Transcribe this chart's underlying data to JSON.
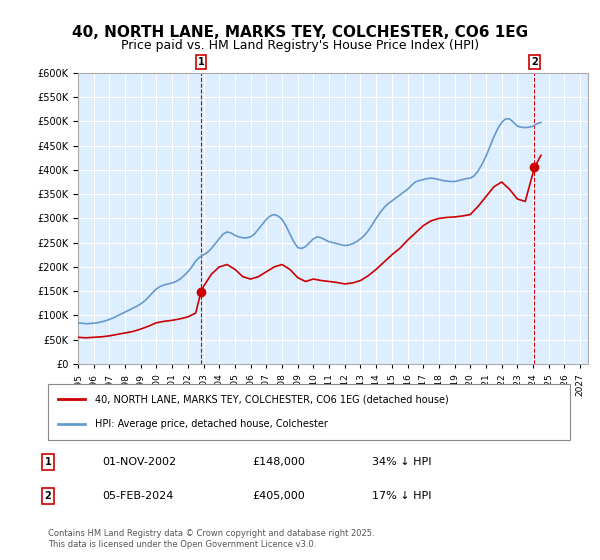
{
  "title": "40, NORTH LANE, MARKS TEY, COLCHESTER, CO6 1EG",
  "subtitle": "Price paid vs. HM Land Registry's House Price Index (HPI)",
  "title_fontsize": 11,
  "subtitle_fontsize": 9,
  "background_color": "#ffffff",
  "plot_bg_color": "#ddeeff",
  "grid_color": "#ffffff",
  "ylim": [
    0,
    600000
  ],
  "yticks": [
    0,
    50000,
    100000,
    150000,
    200000,
    250000,
    300000,
    350000,
    400000,
    450000,
    500000,
    550000,
    600000
  ],
  "ylabel_format": "£{0}K",
  "xlim_start": 1995.0,
  "xlim_end": 2027.5,
  "red_line_color": "#cc0000",
  "blue_line_color": "#6699cc",
  "marker_color_red": "#cc0000",
  "sale1_x": 2002.833,
  "sale1_y": 148000,
  "sale2_x": 2024.09,
  "sale2_y": 405000,
  "sale1_label": "1",
  "sale2_label": "2",
  "legend_red_label": "40, NORTH LANE, MARKS TEY, COLCHESTER, CO6 1EG (detached house)",
  "legend_blue_label": "HPI: Average price, detached house, Colchester",
  "ann1_num": "1",
  "ann1_date": "01-NOV-2002",
  "ann1_price": "£148,000",
  "ann1_hpi": "34% ↓ HPI",
  "ann2_num": "2",
  "ann2_date": "05-FEB-2024",
  "ann2_price": "£405,000",
  "ann2_hpi": "17% ↓ HPI",
  "footer": "Contains HM Land Registry data © Crown copyright and database right 2025.\nThis data is licensed under the Open Government Licence v3.0.",
  "hpi_x": [
    1995.0,
    1995.25,
    1995.5,
    1995.75,
    1996.0,
    1996.25,
    1996.5,
    1996.75,
    1997.0,
    1997.25,
    1997.5,
    1997.75,
    1998.0,
    1998.25,
    1998.5,
    1998.75,
    1999.0,
    1999.25,
    1999.5,
    1999.75,
    2000.0,
    2000.25,
    2000.5,
    2000.75,
    2001.0,
    2001.25,
    2001.5,
    2001.75,
    2002.0,
    2002.25,
    2002.5,
    2002.75,
    2003.0,
    2003.25,
    2003.5,
    2003.75,
    2004.0,
    2004.25,
    2004.5,
    2004.75,
    2005.0,
    2005.25,
    2005.5,
    2005.75,
    2006.0,
    2006.25,
    2006.5,
    2006.75,
    2007.0,
    2007.25,
    2007.5,
    2007.75,
    2008.0,
    2008.25,
    2008.5,
    2008.75,
    2009.0,
    2009.25,
    2009.5,
    2009.75,
    2010.0,
    2010.25,
    2010.5,
    2010.75,
    2011.0,
    2011.25,
    2011.5,
    2011.75,
    2012.0,
    2012.25,
    2012.5,
    2012.75,
    2013.0,
    2013.25,
    2013.5,
    2013.75,
    2014.0,
    2014.25,
    2014.5,
    2014.75,
    2015.0,
    2015.25,
    2015.5,
    2015.75,
    2016.0,
    2016.25,
    2016.5,
    2016.75,
    2017.0,
    2017.25,
    2017.5,
    2017.75,
    2018.0,
    2018.25,
    2018.5,
    2018.75,
    2019.0,
    2019.25,
    2019.5,
    2019.75,
    2020.0,
    2020.25,
    2020.5,
    2020.75,
    2021.0,
    2021.25,
    2021.5,
    2021.75,
    2022.0,
    2022.25,
    2022.5,
    2022.75,
    2023.0,
    2023.25,
    2023.5,
    2023.75,
    2024.0,
    2024.25,
    2024.5
  ],
  "hpi_y": [
    85000,
    84000,
    83000,
    83500,
    84000,
    85000,
    87000,
    89000,
    92000,
    95000,
    99000,
    103000,
    107000,
    111000,
    115000,
    119000,
    124000,
    130000,
    138000,
    147000,
    155000,
    160000,
    163000,
    165000,
    167000,
    170000,
    175000,
    182000,
    190000,
    200000,
    212000,
    220000,
    225000,
    230000,
    238000,
    248000,
    258000,
    268000,
    272000,
    270000,
    265000,
    262000,
    260000,
    260000,
    262000,
    268000,
    278000,
    288000,
    298000,
    305000,
    308000,
    305000,
    298000,
    285000,
    268000,
    252000,
    240000,
    238000,
    242000,
    250000,
    258000,
    262000,
    260000,
    256000,
    252000,
    250000,
    248000,
    246000,
    244000,
    245000,
    248000,
    252000,
    258000,
    265000,
    275000,
    287000,
    300000,
    312000,
    322000,
    330000,
    336000,
    342000,
    348000,
    354000,
    360000,
    368000,
    375000,
    378000,
    380000,
    382000,
    383000,
    382000,
    380000,
    378000,
    377000,
    376000,
    376000,
    378000,
    380000,
    382000,
    383000,
    388000,
    398000,
    412000,
    428000,
    448000,
    468000,
    485000,
    498000,
    505000,
    505000,
    498000,
    490000,
    488000,
    487000,
    488000,
    490000,
    495000,
    498000
  ],
  "red_x": [
    1995.0,
    1995.5,
    1996.0,
    1996.5,
    1997.0,
    1997.5,
    1998.0,
    1998.5,
    1999.0,
    1999.5,
    2000.0,
    2000.5,
    2001.0,
    2001.5,
    2002.0,
    2002.5,
    2002.833,
    2003.0,
    2003.5,
    2004.0,
    2004.5,
    2005.0,
    2005.5,
    2006.0,
    2006.5,
    2007.0,
    2007.5,
    2008.0,
    2008.5,
    2009.0,
    2009.5,
    2010.0,
    2010.5,
    2011.0,
    2011.5,
    2012.0,
    2012.5,
    2013.0,
    2013.5,
    2014.0,
    2014.5,
    2015.0,
    2015.5,
    2016.0,
    2016.5,
    2017.0,
    2017.5,
    2018.0,
    2018.5,
    2019.0,
    2019.5,
    2020.0,
    2020.5,
    2021.0,
    2021.5,
    2022.0,
    2022.5,
    2023.0,
    2023.5,
    2024.09,
    2024.5
  ],
  "red_y": [
    55000,
    54000,
    55000,
    56000,
    58000,
    61000,
    64000,
    67000,
    72000,
    78000,
    85000,
    88000,
    90000,
    93000,
    97000,
    105000,
    148000,
    160000,
    185000,
    200000,
    205000,
    195000,
    180000,
    175000,
    180000,
    190000,
    200000,
    205000,
    195000,
    178000,
    170000,
    175000,
    172000,
    170000,
    168000,
    165000,
    167000,
    172000,
    182000,
    195000,
    210000,
    225000,
    238000,
    255000,
    270000,
    285000,
    295000,
    300000,
    302000,
    303000,
    305000,
    308000,
    325000,
    345000,
    365000,
    375000,
    360000,
    340000,
    335000,
    405000,
    430000
  ]
}
